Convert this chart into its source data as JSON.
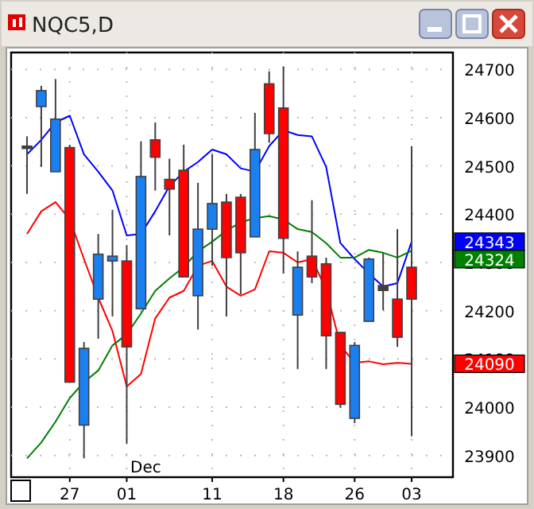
{
  "chart_data": {
    "type": "candlestick",
    "title": "NQC5,D",
    "categories": [
      null,
      null,
      null,
      "27",
      null,
      null,
      null,
      "01",
      null,
      null,
      null,
      null,
      null,
      "11",
      null,
      null,
      null,
      null,
      "18",
      null,
      null,
      null,
      null,
      "26",
      null,
      null,
      null,
      "03"
    ],
    "ohlc": [
      [
        24541,
        24561,
        24442,
        24541
      ],
      [
        24623,
        24666,
        24498,
        24656
      ],
      [
        24488,
        24680,
        24488,
        24597
      ],
      [
        24538,
        24544,
        24052,
        24052
      ],
      [
        23963,
        24135,
        23894,
        24122
      ],
      [
        24224,
        24359,
        24142,
        24317
      ],
      [
        24303,
        24409,
        24188,
        24313
      ],
      [
        24303,
        24336,
        23924,
        24125
      ],
      [
        24204,
        24551,
        24204,
        24478
      ],
      [
        24554,
        24590,
        24449,
        24518
      ],
      [
        24472,
        24515,
        24356,
        24452
      ],
      [
        24491,
        24544,
        24270,
        24270
      ],
      [
        24231,
        24465,
        24161,
        24369
      ],
      [
        24369,
        24524,
        24293,
        24422
      ],
      [
        24425,
        24442,
        24188,
        24310
      ],
      [
        24435,
        24442,
        24234,
        24320
      ],
      [
        24353,
        24610,
        24353,
        24534
      ],
      [
        24670,
        24696,
        24548,
        24567
      ],
      [
        24620,
        24706,
        24277,
        24350
      ],
      [
        24191,
        24323,
        24079,
        24290
      ],
      [
        24313,
        24429,
        24257,
        24270
      ],
      [
        24297,
        24310,
        24079,
        24148
      ],
      [
        24155,
        24155,
        23999,
        24006
      ],
      [
        23977,
        24135,
        23967,
        24128
      ],
      [
        24178,
        24310,
        24178,
        24307
      ],
      [
        24252,
        24320,
        24201,
        24242
      ],
      [
        24224,
        24369,
        24125,
        24145
      ],
      [
        24290,
        24541,
        23940,
        24224
      ]
    ],
    "colors": [
      "#404040",
      "#1a7ff0",
      "#1a7ff0",
      "#ff0000",
      "#1a7ff0",
      "#1a7ff0",
      "#1a7ff0",
      "#ff0000",
      "#1a7ff0",
      "#ff0000",
      "#ff0000",
      "#ff0000",
      "#1a7ff0",
      "#1a7ff0",
      "#ff0000",
      "#ff0000",
      "#1a7ff0",
      "#ff0000",
      "#ff0000",
      "#1a7ff0",
      "#ff0000",
      "#ff0000",
      "#ff0000",
      "#1a7ff0",
      "#1a7ff0",
      "#404040",
      "#ff0000",
      "#ff0000"
    ],
    "series": [
      {
        "type": "line",
        "color": "#0000ff",
        "values": [
          24524,
          24554,
          24590,
          24604,
          24524,
          24488,
          24449,
          24356,
          24359,
          24406,
          24458,
          24488,
          24508,
          24534,
          24524,
          24495,
          24488,
          24541,
          24574,
          24564,
          24561,
          24498,
          24340,
          24307,
          24277,
          24250,
          24257,
          24343
        ]
      },
      {
        "type": "line",
        "color": "#008000",
        "values": [
          23894,
          23927,
          23970,
          24019,
          24052,
          24076,
          24128,
          24151,
          24194,
          24241,
          24267,
          24290,
          24323,
          24343,
          24366,
          24383,
          24392,
          24396,
          24389,
          24369,
          24363,
          24340,
          24310,
          24310,
          24326,
          24320,
          24310,
          24324
        ]
      },
      {
        "type": "line",
        "color": "#ff0000",
        "values": [
          24359,
          24406,
          24425,
          24389,
          24307,
          24227,
          24158,
          24043,
          24069,
          24184,
          24227,
          24241,
          24293,
          24303,
          24250,
          24231,
          24244,
          24323,
          24320,
          24300,
          24307,
          24244,
          24128,
          24092,
          24095,
          24089,
          24092,
          24090
        ]
      }
    ],
    "ylim": [
      23855,
      24735
    ],
    "yticks": [
      23900,
      24000,
      24100,
      24200,
      24300,
      24400,
      24500,
      24600,
      24700
    ],
    "grid": true,
    "annotations": [
      "Dec",
      "24343",
      "24324",
      "24090"
    ]
  }
}
